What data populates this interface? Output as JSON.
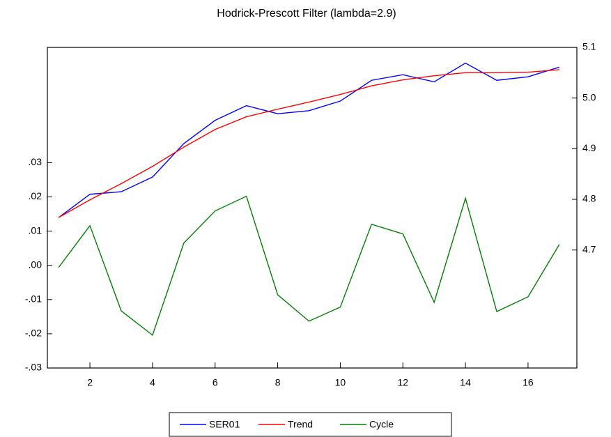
{
  "chart_data": {
    "type": "line",
    "title": "Hodrick-Prescott Filter (lambda=2.9)",
    "x": [
      1,
      2,
      3,
      4,
      5,
      6,
      7,
      8,
      9,
      10,
      11,
      12,
      13,
      14,
      15,
      16,
      17
    ],
    "xlim": [
      0.64,
      17.56
    ],
    "xticks": [
      2,
      4,
      6,
      8,
      10,
      12,
      14,
      16
    ],
    "ylim": [
      -0.03,
      0.0637
    ],
    "yticks": [
      {
        "value": 0.03,
        "label": ".03"
      },
      {
        "value": 0.02,
        "label": ".02"
      },
      {
        "value": 0.01,
        "label": ".01"
      },
      {
        "value": 0,
        "label": ".00"
      },
      {
        "value": -0.01,
        "label": "-.01"
      },
      {
        "value": -0.02,
        "label": "-.02"
      },
      {
        "value": -0.03,
        "label": "-.03"
      }
    ],
    "y2lim": [
      4.467,
      5.1
    ],
    "y2ticks": [
      5.1,
      {
        "value": 5.0,
        "label": "5.0"
      },
      4.9,
      4.8,
      4.7
    ],
    "legend": "bottom",
    "series": [
      {
        "name": "SER01",
        "color": "#0000ff",
        "axis": "y2",
        "values": [
          4.764,
          4.81,
          4.815,
          4.844,
          4.91,
          4.956,
          4.985,
          4.969,
          4.975,
          4.994,
          5.035,
          5.046,
          5.032,
          5.069,
          5.035,
          5.042,
          5.061
        ]
      },
      {
        "name": "Trend",
        "color": "#ff0000",
        "axis": "y2",
        "values": [
          4.764,
          4.799,
          4.831,
          4.865,
          4.903,
          4.938,
          4.963,
          4.978,
          4.992,
          5.007,
          5.024,
          5.036,
          5.044,
          5.05,
          5.05,
          5.051,
          5.056
        ]
      },
      {
        "name": "Cycle",
        "color": "#008000",
        "values": [
          -0.0006,
          0.0116,
          -0.0133,
          -0.0204,
          0.0065,
          0.0159,
          0.0202,
          -0.0086,
          -0.0163,
          -0.0122,
          0.012,
          0.0092,
          -0.0108,
          0.0196,
          -0.0135,
          -0.0092,
          0.0061
        ]
      }
    ]
  }
}
